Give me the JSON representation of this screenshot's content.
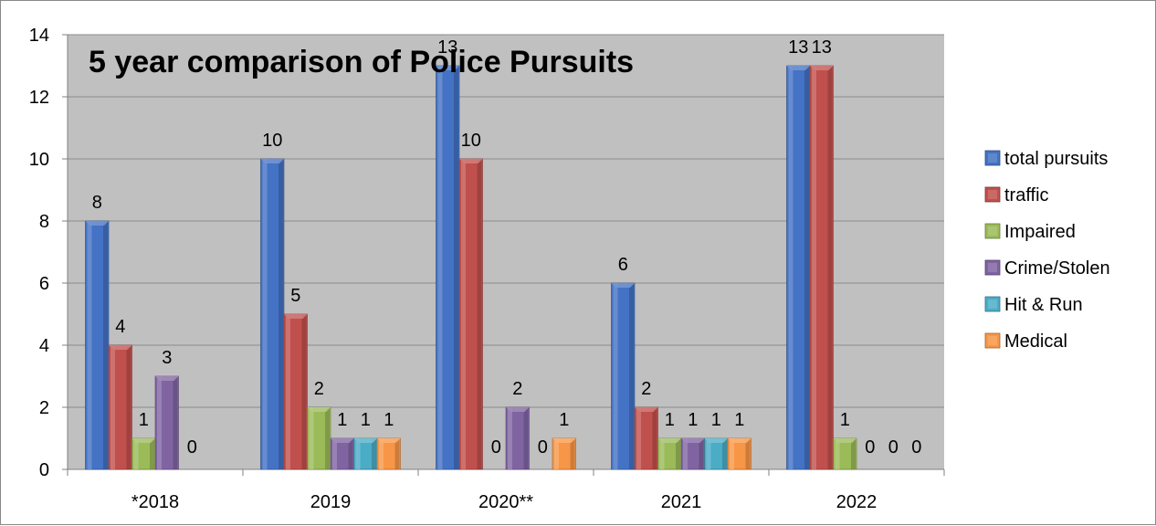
{
  "chart_data": {
    "type": "bar",
    "title": "5 year comparison of Police Pursuits",
    "xlabel": "",
    "ylabel": "",
    "ylim": [
      0,
      14
    ],
    "y_ticks": [
      "0",
      "2",
      "4",
      "6",
      "8",
      "10",
      "12",
      "14"
    ],
    "categories": [
      "*2018",
      "2019",
      "2020**",
      "2021",
      "2022"
    ],
    "grid": true,
    "legend_position": "right",
    "plot_background": "#c0c0c0",
    "series": [
      {
        "name": "total pursuits",
        "color": "#4472c4",
        "values": [
          8,
          10,
          13,
          6,
          13
        ],
        "labels": [
          "8",
          "10",
          "13",
          "6",
          "13"
        ]
      },
      {
        "name": "traffic",
        "color": "#c0504d",
        "values": [
          4,
          5,
          10,
          2,
          13
        ],
        "labels": [
          "4",
          "5",
          "10",
          "2",
          "13"
        ]
      },
      {
        "name": "Impaired",
        "color": "#9bbb59",
        "values": [
          1,
          2,
          0,
          1,
          1
        ],
        "labels": [
          "1",
          "2",
          "0",
          "1",
          "1"
        ]
      },
      {
        "name": "Crime/Stolen",
        "color": "#8064a2",
        "values": [
          3,
          1,
          2,
          1,
          0
        ],
        "labels": [
          "3",
          "1",
          "2",
          "1",
          "0"
        ]
      },
      {
        "name": "Hit & Run",
        "color": "#4bacc6",
        "values": [
          0,
          1,
          0,
          1,
          0
        ],
        "labels": [
          "0",
          "1",
          "0",
          "1",
          "0"
        ]
      },
      {
        "name": "Medical",
        "color": "#f79646",
        "values": [
          null,
          1,
          1,
          1,
          0
        ],
        "labels": [
          null,
          "1",
          "1",
          "1",
          "0"
        ]
      }
    ]
  }
}
